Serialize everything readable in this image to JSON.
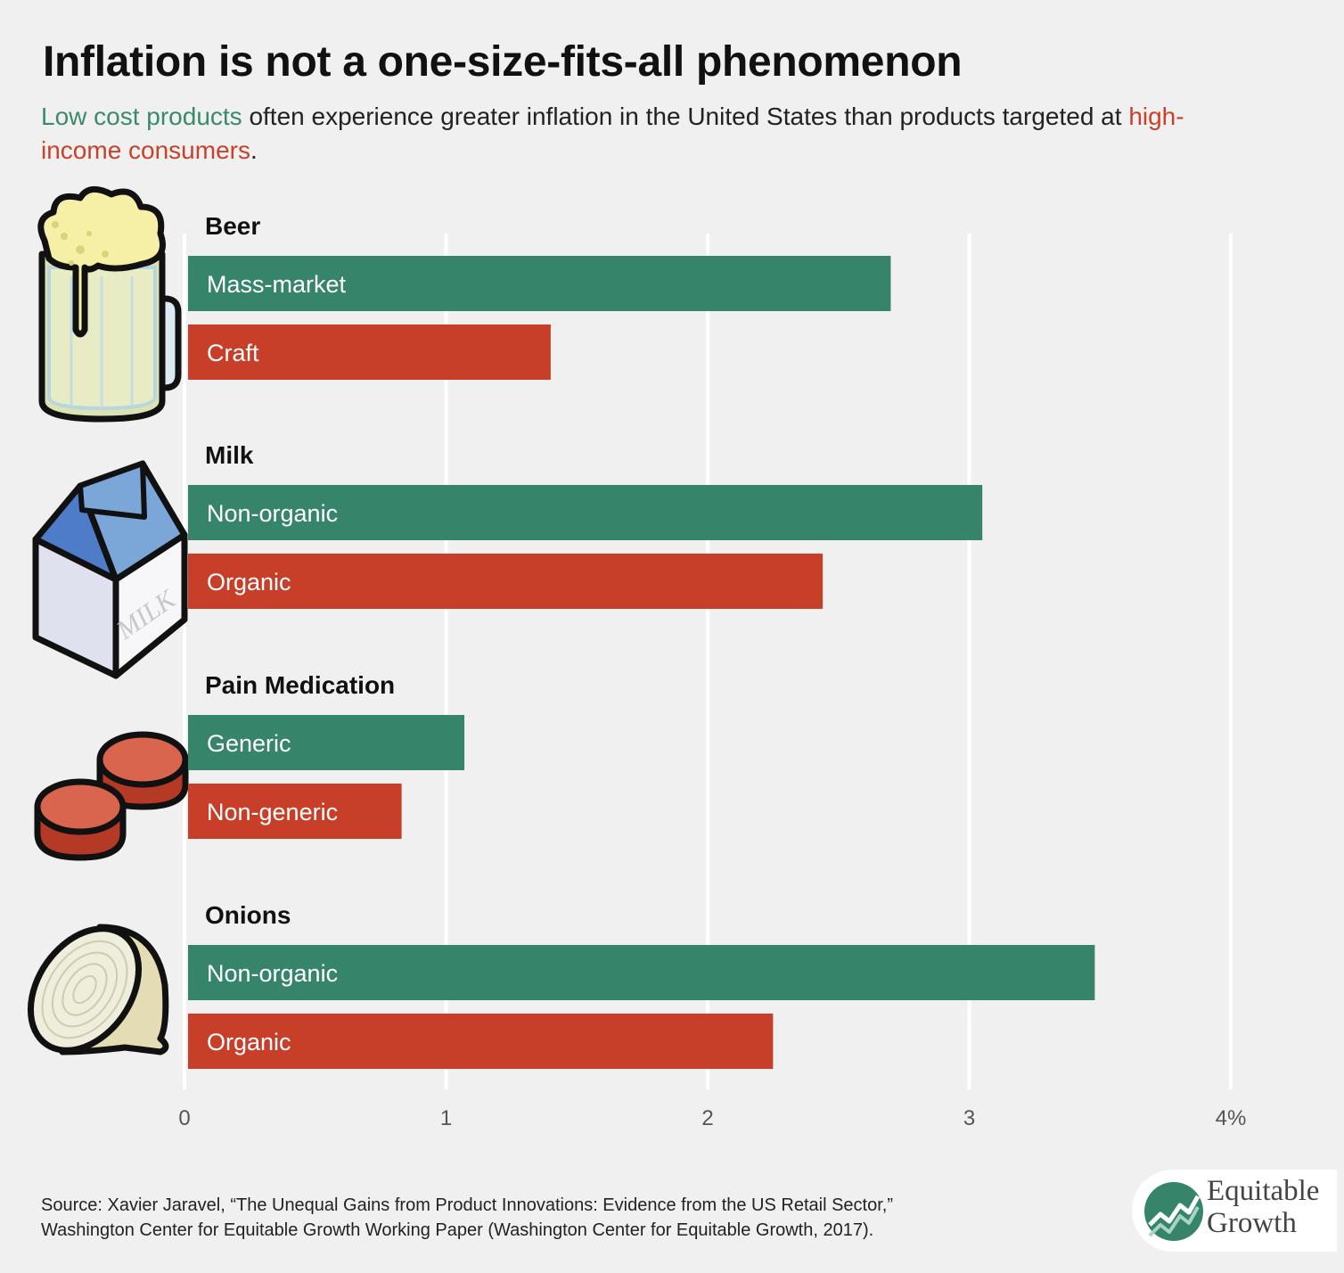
{
  "title": "Inflation is not a one-size-fits-all phenomenon",
  "subtitle": {
    "part1_green": "Low cost products",
    "part2": " often experience greater inflation in the United States than products targeted at ",
    "part3_red": "high-income consumers",
    "part4": "."
  },
  "colors": {
    "low_cost": "#36856b",
    "high_income": "#c73f29",
    "background": "#f0f0f0",
    "grid": "#ffffff"
  },
  "chart_data": {
    "type": "bar",
    "orientation": "horizontal",
    "xlim": [
      0,
      4
    ],
    "x_ticks": [
      "0",
      "1",
      "2",
      "3",
      "4%"
    ],
    "grid": true,
    "groups": [
      {
        "category": "Beer",
        "icon": "beer-mug-icon",
        "bars": [
          {
            "label": "Mass-market",
            "value": 2.7,
            "kind": "low_cost"
          },
          {
            "label": "Craft",
            "value": 1.4,
            "kind": "high_income"
          }
        ]
      },
      {
        "category": "Milk",
        "icon": "milk-carton-icon",
        "bars": [
          {
            "label": "Non-organic",
            "value": 3.05,
            "kind": "low_cost"
          },
          {
            "label": "Organic",
            "value": 2.44,
            "kind": "high_income"
          }
        ]
      },
      {
        "category": "Pain Medication",
        "icon": "pills-icon",
        "bars": [
          {
            "label": "Generic",
            "value": 1.07,
            "kind": "low_cost"
          },
          {
            "label": "Non-generic",
            "value": 0.83,
            "kind": "high_income"
          }
        ]
      },
      {
        "category": "Onions",
        "icon": "onion-icon",
        "bars": [
          {
            "label": "Non-organic",
            "value": 3.48,
            "kind": "low_cost"
          },
          {
            "label": "Organic",
            "value": 2.25,
            "kind": "high_income"
          }
        ]
      }
    ]
  },
  "source": {
    "line1": "Source: Xavier Jaravel, “The Unequal Gains from Product Innovations: Evidence from the US Retail Sector,”",
    "line2": "Washington Center for Equitable Growth Working Paper (Washington Center for Equitable Growth, 2017)."
  },
  "logo": {
    "line1": "Equitable",
    "line2": "Growth",
    "icon": "growth-chart-icon"
  },
  "milk_carton_text": "MILK"
}
